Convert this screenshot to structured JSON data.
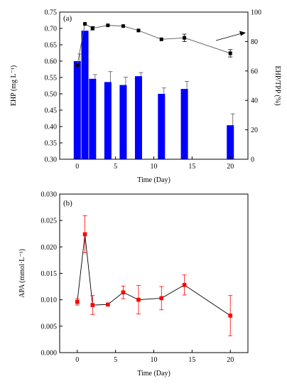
{
  "chart_data": [
    {
      "panel_label": "(a)",
      "type": "bar+line",
      "xlabel": "Time (Day)",
      "ylabel_left": "EHP (mg L⁻¹)",
      "ylabel_right": "EHP/TPP (%)",
      "xlim": [
        -2.3,
        22.3
      ],
      "ylim_left": [
        0.3,
        0.75
      ],
      "ylim_right": [
        0,
        100
      ],
      "x_ticks": [
        0,
        5,
        10,
        15,
        20
      ],
      "x_tick_labels": [
        "0",
        "5",
        "10",
        "15",
        "20"
      ],
      "y_left_ticks": [
        0.3,
        0.35,
        0.4,
        0.45,
        0.5,
        0.55,
        0.6,
        0.65,
        0.7,
        0.75
      ],
      "y_left_tick_labels": [
        "0.30",
        "0.35",
        "0.40",
        "0.45",
        "0.50",
        "0.55",
        "0.60",
        "0.65",
        "0.70",
        "0.75"
      ],
      "y_right_ticks": [
        0,
        20,
        40,
        60,
        80,
        100
      ],
      "y_right_tick_labels": [
        "0",
        "20",
        "40",
        "60",
        "80",
        "100"
      ],
      "bars": {
        "axis": "left",
        "color": "#0000ff",
        "x": [
          0,
          1,
          2,
          4,
          6,
          8,
          11,
          14,
          20
        ],
        "values": [
          0.6,
          0.693,
          0.546,
          0.536,
          0.527,
          0.554,
          0.5,
          0.515,
          0.404
        ],
        "errors": [
          0.022,
          0.0,
          0.013,
          0.032,
          0.024,
          0.011,
          0.018,
          0.023,
          0.035
        ]
      },
      "line": {
        "axis": "right",
        "color": "#000000",
        "marker": "square",
        "x": [
          0,
          1,
          2,
          4,
          6,
          8,
          11,
          14,
          20
        ],
        "values": [
          64,
          92,
          89,
          91,
          90.5,
          87.5,
          81.5,
          82.5,
          72
        ],
        "errors": [
          0,
          0,
          1.2,
          0,
          0,
          0,
          0,
          2.5,
          2.5
        ]
      },
      "annotation": "arrow pointing right (line series uses right axis)"
    },
    {
      "panel_label": "(b)",
      "type": "line",
      "xlabel": "Time (Day)",
      "ylabel": "APA (mmol·L⁻¹)",
      "xlim": [
        -2.3,
        22.3
      ],
      "ylim": [
        0.0,
        0.03
      ],
      "x_ticks": [
        0,
        5,
        10,
        15,
        20
      ],
      "x_tick_labels": [
        "0",
        "5",
        "10",
        "15",
        "20"
      ],
      "y_ticks": [
        0.0,
        0.005,
        0.01,
        0.015,
        0.02,
        0.025,
        0.03
      ],
      "y_tick_labels": [
        "0.000",
        "0.005",
        "0.010",
        "0.015",
        "0.020",
        "0.025",
        "0.030"
      ],
      "series": [
        {
          "color": "#ff0000",
          "marker": "square",
          "line_color": "#000000",
          "x": [
            0,
            1,
            2,
            4,
            6,
            8,
            11,
            14,
            20
          ],
          "values": [
            0.0096,
            0.0224,
            0.009,
            0.0091,
            0.0114,
            0.01,
            0.0103,
            0.0128,
            0.007
          ],
          "errors": [
            0.0006,
            0.0035,
            0.0018,
            0.0,
            0.0012,
            0.0027,
            0.0022,
            0.0019,
            0.0038
          ]
        }
      ]
    }
  ]
}
